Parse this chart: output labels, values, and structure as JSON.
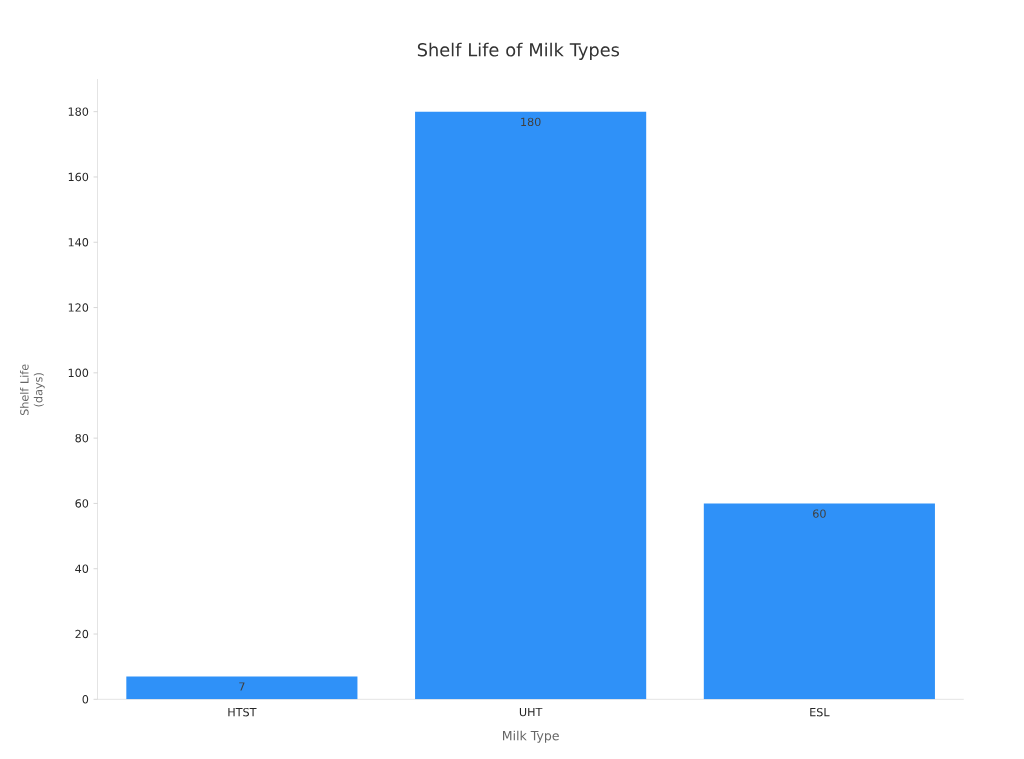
{
  "chart_data": {
    "type": "bar",
    "title": "Shelf Life of Milk Types",
    "xlabel": "Milk Type",
    "ylabel": "Shelf Life (days)",
    "categories": [
      "HTST",
      "UHT",
      "ESL"
    ],
    "values": [
      7,
      180,
      60
    ],
    "color": "#2f91f8",
    "ylim": [
      0,
      190
    ],
    "yticks": [
      0,
      20,
      40,
      60,
      80,
      100,
      120,
      140,
      160,
      180
    ],
    "data_labels": true,
    "grid": false
  }
}
